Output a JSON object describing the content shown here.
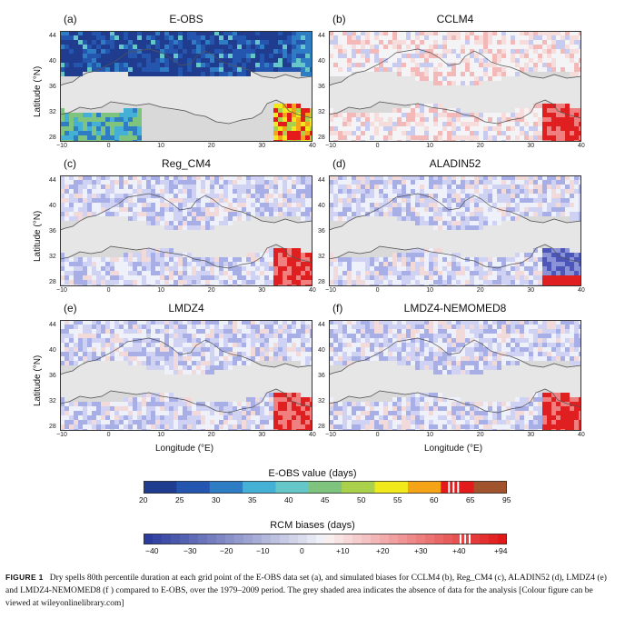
{
  "panels": [
    {
      "letter": "(a)",
      "title": "E-OBS",
      "kind": "obs"
    },
    {
      "letter": "(b)",
      "title": "CCLM4",
      "kind": "bias-warm"
    },
    {
      "letter": "(c)",
      "title": "Reg_CM4",
      "kind": "bias-cold"
    },
    {
      "letter": "(d)",
      "title": "ALADIN52",
      "kind": "bias-mixed"
    },
    {
      "letter": "(e)",
      "title": "LMDZ4",
      "kind": "bias-cold2"
    },
    {
      "letter": "(f)",
      "title": "LMDZ4-NEMOMED8",
      "kind": "bias-cold2"
    }
  ],
  "axes": {
    "ylabel": "Latitude (°N)",
    "xlabel": "Longitude (°E)",
    "yticks": [
      "44",
      "40",
      "36",
      "32",
      "28"
    ],
    "xticks": [
      "−10",
      "0",
      "10",
      "20",
      "30",
      "40"
    ]
  },
  "colorbar_obs": {
    "title": "E-OBS value (days)",
    "labels": [
      "20",
      "25",
      "30",
      "35",
      "40",
      "45",
      "50",
      "55",
      "60",
      "65",
      "95"
    ],
    "colors": [
      "#1f3c8f",
      "#2456b0",
      "#2d7cc4",
      "#45b0d6",
      "#66c7c9",
      "#7fc47e",
      "#a9d14b",
      "#f0ea1d",
      "#f4a416",
      "#e31b1b",
      "#a0532d"
    ]
  },
  "colorbar_bias": {
    "title": "RCM biases (days)",
    "labels": [
      "−40",
      "−30",
      "−20",
      "−10",
      "0",
      "+10",
      "+20",
      "+30",
      "+40",
      "+94"
    ],
    "negColor": "#2b3b9e",
    "posColor": "#e01818"
  },
  "caption": {
    "label": "FIGURE 1",
    "text": "Dry spells 80th percentile duration at each grid point of the E-OBS data set (a), and simulated biases for CCLM4 (b), Reg_CM4 (c), ALADIN52 (d), LMDZ4 (e) and LMDZ4-NEMOMED8 (f ) compared to E-OBS, over the 1979–2009 period. The grey shaded area indicates the absence of data for the analysis [Colour figure can be viewed at wileyonlinelibrary.com]"
  }
}
